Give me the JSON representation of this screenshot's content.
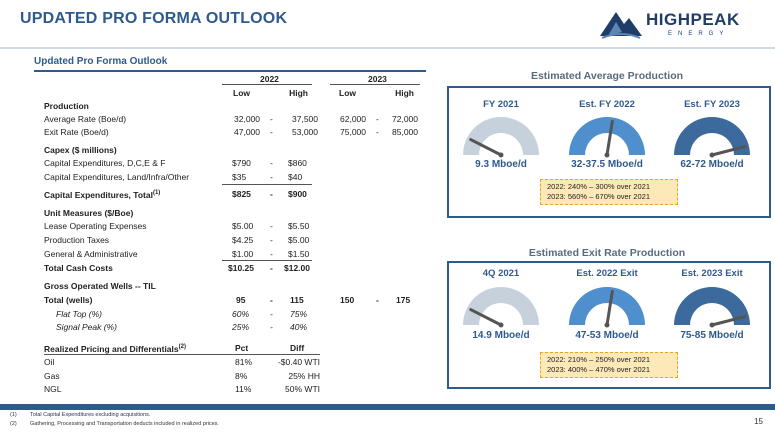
{
  "header": {
    "title": "UPDATED PRO FORMA OUTLOOK",
    "logo_text": "HIGHPEAK",
    "logo_sub": "ENERGY"
  },
  "table": {
    "title": "Updated Pro Forma Outlook",
    "year_2022": "2022",
    "year_2023": "2023",
    "low": "Low",
    "high": "High",
    "production": {
      "heading": "Production",
      "rows": [
        {
          "label": "Average Rate (Boe/d)",
          "l22": "32,000",
          "h22": "37,500",
          "l23": "62,000",
          "h23": "72,000"
        },
        {
          "label": "Exit Rate (Boe/d)",
          "l22": "47,000",
          "h22": "53,000",
          "l23": "75,000",
          "h23": "85,000"
        }
      ]
    },
    "capex": {
      "heading": "Capex ($ millions)",
      "rows": [
        {
          "label": "Capital Expenditures, D,C,E & F",
          "l22": "$790",
          "h22": "$860"
        },
        {
          "label": "Capital Expenditures, Land/Infra/Other",
          "l22": "$35",
          "h22": "$40"
        }
      ],
      "total_label": "Capital Expenditures, Total",
      "total_sup": "(1)",
      "total_l22": "$825",
      "total_h22": "$900"
    },
    "unit": {
      "heading": "Unit Measures ($/Boe)",
      "rows": [
        {
          "label": "Lease Operating Expenses",
          "l22": "$5.00",
          "h22": "$5.50"
        },
        {
          "label": "Production Taxes",
          "l22": "$4.25",
          "h22": "$5.00"
        },
        {
          "label": "General & Administrative",
          "l22": "$1.00",
          "h22": "$1.50"
        }
      ],
      "total_label": "Total Cash Costs",
      "total_l22": "$10.25",
      "total_h22": "$12.00"
    },
    "wells": {
      "heading": "Gross Operated Wells -- TIL",
      "total_label": "Total (wells)",
      "total_l22": "95",
      "total_h22": "115",
      "total_l23": "150",
      "total_h23": "175",
      "rows": [
        {
          "label": "Flat Top (%)",
          "l22": "60%",
          "h22": "75%"
        },
        {
          "label": "Signal Peak (%)",
          "l22": "25%",
          "h22": "40%"
        }
      ]
    },
    "pricing": {
      "heading": "Realized Pricing and Differentials",
      "heading_sup": "(2)",
      "col_pct": "Pct",
      "col_diff": "Diff",
      "rows": [
        {
          "label": "Oil",
          "pct": "81%",
          "diff": "-$0.40 WTI"
        },
        {
          "label": "Gas",
          "pct": "8%",
          "diff": "25% HH"
        },
        {
          "label": "NGL",
          "pct": "11%",
          "diff": "50% WTI"
        }
      ]
    },
    "dash": "-"
  },
  "avg_panel": {
    "title": "Estimated  Average Production",
    "gauges": [
      {
        "label": "FY 2021",
        "value": "9.3 Mboe/d",
        "level": 0.15,
        "color": "#c7d1dc"
      },
      {
        "label": "Est. FY 2022",
        "value": "32-37.5 Mboe/d",
        "level": 0.55,
        "color": "#4f8fce"
      },
      {
        "label": "Est. FY 2023",
        "value": "62-72 Mboe/d",
        "level": 0.92,
        "color": "#3d6a9c"
      }
    ],
    "notes": [
      "2022:  240% – 300% over 2021",
      "2023:  560% – 670% over 2021"
    ]
  },
  "exit_panel": {
    "title": "Estimated  Exit Rate Production",
    "gauges": [
      {
        "label": "4Q 2021",
        "value": "14.9 Mboe/d",
        "level": 0.15,
        "color": "#c7d1dc"
      },
      {
        "label": "Est. 2022 Exit",
        "value": "47-53 Mboe/d",
        "level": 0.55,
        "color": "#4f8fce"
      },
      {
        "label": "Est. 2023 Exit",
        "value": "75-85 Mboe/d",
        "level": 0.92,
        "color": "#3d6a9c"
      }
    ],
    "notes": [
      "2022:  210% – 250% over 2021",
      "2023:  400% – 470% over 2021"
    ]
  },
  "footnotes": [
    {
      "num": "(1)",
      "text": "Total Capital Expenditures excluding acquisitions."
    },
    {
      "num": "(2)",
      "text": "Gathering, Processing and Transportation deducts included in realized prices."
    }
  ],
  "page_number": "15",
  "colors": {
    "accent": "#2f5a8e",
    "note_fill": "#fde9b8",
    "note_border": "#e3a81f"
  }
}
